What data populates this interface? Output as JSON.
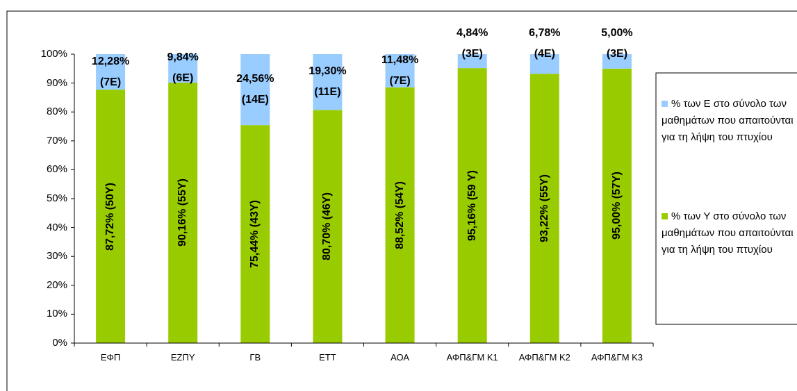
{
  "chart_data": {
    "type": "stacked_bar",
    "categories": [
      "ΕΦΠ",
      "ΕΖΠΥ",
      "ΓΒ",
      "ΕΤΤ",
      "ΑΟΑ",
      "ΑΦΠ&ΓΜ Κ1",
      "ΑΦΠ&ΓΜ Κ2",
      "ΑΦΠ&ΓΜ Κ3"
    ],
    "series": [
      {
        "name": "% των Υ στο σύνολο των μαθημάτων που απαιτούνται για τη λήψη του πτυχίου",
        "color": "#99cc00",
        "values": [
          87.72,
          90.16,
          75.44,
          80.7,
          88.52,
          95.16,
          93.22,
          95.0
        ],
        "value_labels": [
          "87,72% (50Υ)",
          "90,16% (55Υ)",
          "75,44% (43Υ)",
          "80,70% (46Υ)",
          "88,52% (54Υ)",
          "95,16% (59 Υ)",
          "93,22% (55Υ)",
          "95,00% (57Υ)"
        ]
      },
      {
        "name": "% των Ε στο σύνολο των μαθημάτων που απαιτούνται για τη λήψη του πτυχίου",
        "color": "#99ccff",
        "values": [
          12.28,
          9.84,
          24.56,
          19.3,
          11.48,
          4.84,
          6.78,
          5.0
        ],
        "value_labels": [
          "12,28% (7Ε)",
          "9,84% (6Ε)",
          "24,56% (14Ε)",
          "19,30% (11Ε)",
          "11,48% (7Ε)",
          "4,84% (3Ε)",
          "6,78% (4Ε)",
          "5,00% (3Ε)"
        ]
      }
    ],
    "ylim": [
      0,
      100
    ],
    "yticks": [
      {
        "value": 0,
        "label": "0%"
      },
      {
        "value": 10,
        "label": "10%"
      },
      {
        "value": 20,
        "label": "20%"
      },
      {
        "value": 30,
        "label": "30%"
      },
      {
        "value": 40,
        "label": "40%"
      },
      {
        "value": 50,
        "label": "50%"
      },
      {
        "value": 60,
        "label": "60%"
      },
      {
        "value": 70,
        "label": "70%"
      },
      {
        "value": 80,
        "label": "80%"
      },
      {
        "value": 90,
        "label": "90%"
      },
      {
        "value": 100,
        "label": "100%"
      }
    ],
    "legend": "right"
  }
}
